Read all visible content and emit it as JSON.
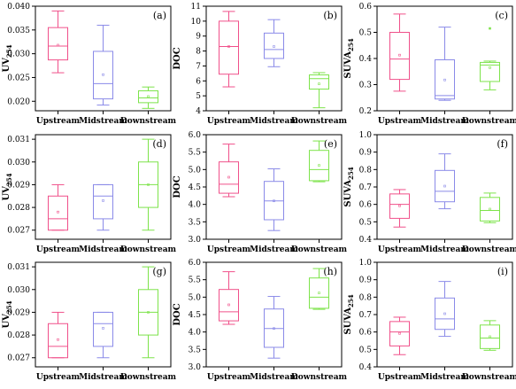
{
  "colors": {
    "upstream": "#f0508a",
    "midstream": "#8a8ae8",
    "downstream": "#7de34a"
  },
  "chart_data": [
    {
      "type": "box",
      "panel": "(a)",
      "ylabel": "UV",
      "ylabel_sub": "254",
      "ylim": [
        0.018,
        0.04
      ],
      "yticks": [
        0.02,
        0.025,
        0.03,
        0.035,
        0.04
      ],
      "ytick_labels": [
        "0.020",
        "0.025",
        "0.030",
        "0.035",
        "0.040"
      ],
      "categories": [
        "Upstream",
        "Midstream",
        "Downstream"
      ],
      "boxes": [
        {
          "min": 0.026,
          "q1": 0.0287,
          "median": 0.0316,
          "q3": 0.0355,
          "max": 0.039,
          "mean": 0.0318
        },
        {
          "min": 0.0192,
          "q1": 0.0205,
          "median": 0.0237,
          "q3": 0.0305,
          "max": 0.036,
          "mean": 0.0256
        },
        {
          "min": 0.0185,
          "q1": 0.0197,
          "median": 0.0207,
          "q3": 0.0222,
          "max": 0.023,
          "mean": 0.021
        }
      ]
    },
    {
      "type": "box",
      "panel": "(b)",
      "ylabel": "DOC",
      "ylabel_sub": "",
      "ylim": [
        4,
        11
      ],
      "yticks": [
        4,
        5,
        6,
        7,
        8,
        9,
        10,
        11
      ],
      "ytick_labels": [
        "4",
        "5",
        "6",
        "7",
        "8",
        "9",
        "10",
        "11"
      ],
      "categories": [
        "Upstream",
        "Midstream",
        "Downstream"
      ],
      "boxes": [
        {
          "min": 5.6,
          "q1": 6.45,
          "median": 8.3,
          "q3": 10.0,
          "max": 10.65,
          "mean": 8.3
        },
        {
          "min": 6.95,
          "q1": 7.5,
          "median": 8.1,
          "q3": 9.2,
          "max": 10.1,
          "mean": 8.3
        },
        {
          "min": 4.2,
          "q1": 5.45,
          "median": 6.15,
          "q3": 6.4,
          "max": 6.55,
          "mean": 5.8
        }
      ]
    },
    {
      "type": "box",
      "panel": "(c)",
      "ylabel": "SUVA",
      "ylabel_sub": "254",
      "ylim": [
        0.2,
        0.6
      ],
      "yticks": [
        0.2,
        0.3,
        0.4,
        0.5,
        0.6
      ],
      "ytick_labels": [
        "0.2",
        "0.3",
        "0.4",
        "0.5",
        "0.6"
      ],
      "categories": [
        "Upstream",
        "Midstream",
        "Downstream"
      ],
      "boxes": [
        {
          "min": 0.275,
          "q1": 0.32,
          "median": 0.398,
          "q3": 0.5,
          "max": 0.57,
          "mean": 0.413
        },
        {
          "min": 0.24,
          "q1": 0.245,
          "median": 0.258,
          "q3": 0.395,
          "max": 0.52,
          "mean": 0.318
        },
        {
          "min": 0.28,
          "q1": 0.312,
          "median": 0.375,
          "q3": 0.385,
          "max": 0.39,
          "mean": 0.365,
          "outliers": [
            0.515
          ]
        }
      ]
    },
    {
      "type": "box",
      "panel": "(d)",
      "ylabel": "UV",
      "ylabel_sub": "254",
      "ylim": [
        0.0266,
        0.0312
      ],
      "yticks": [
        0.027,
        0.028,
        0.029,
        0.03,
        0.031
      ],
      "ytick_labels": [
        "0.027",
        "0.028",
        "0.029",
        "0.030",
        "0.031"
      ],
      "categories": [
        "Upstream",
        "Midstream",
        "Downstream"
      ],
      "boxes": [
        {
          "min": 0.027,
          "q1": 0.027,
          "median": 0.0275,
          "q3": 0.0285,
          "max": 0.029,
          "mean": 0.0278
        },
        {
          "min": 0.027,
          "q1": 0.0275,
          "median": 0.0285,
          "q3": 0.029,
          "max": 0.029,
          "mean": 0.0283
        },
        {
          "min": 0.027,
          "q1": 0.028,
          "median": 0.029,
          "q3": 0.03,
          "max": 0.031,
          "mean": 0.029
        }
      ]
    },
    {
      "type": "box",
      "panel": "(e)",
      "ylabel": "DOC",
      "ylabel_sub": "",
      "ylim": [
        3.0,
        6.0
      ],
      "yticks": [
        3.0,
        3.5,
        4.0,
        4.5,
        5.0,
        5.5,
        6.0
      ],
      "ytick_labels": [
        "3.0",
        "3.5",
        "4.0",
        "4.5",
        "5.0",
        "5.5",
        "6.0"
      ],
      "categories": [
        "Upstream",
        "Midstream",
        "Downstream"
      ],
      "boxes": [
        {
          "min": 4.22,
          "q1": 4.32,
          "median": 4.58,
          "q3": 5.22,
          "max": 5.73,
          "mean": 4.78
        },
        {
          "min": 3.25,
          "q1": 3.56,
          "median": 4.1,
          "q3": 4.66,
          "max": 5.02,
          "mean": 4.1
        },
        {
          "min": 4.65,
          "q1": 4.68,
          "median": 5.0,
          "q3": 5.55,
          "max": 5.82,
          "mean": 5.12
        }
      ]
    },
    {
      "type": "box",
      "panel": "(f)",
      "ylabel": "SUVA",
      "ylabel_sub": "254",
      "ylim": [
        0.4,
        1.0
      ],
      "yticks": [
        0.4,
        0.5,
        0.6,
        0.7,
        0.8,
        0.9,
        1.0
      ],
      "ytick_labels": [
        "0.4",
        "0.5",
        "0.6",
        "0.7",
        "0.8",
        "0.9",
        "1.0"
      ],
      "categories": [
        "Upstream",
        "Midstream",
        "Downstream"
      ],
      "boxes": [
        {
          "min": 0.47,
          "q1": 0.52,
          "median": 0.6,
          "q3": 0.66,
          "max": 0.685,
          "mean": 0.592
        },
        {
          "min": 0.575,
          "q1": 0.615,
          "median": 0.675,
          "q3": 0.795,
          "max": 0.89,
          "mean": 0.705
        },
        {
          "min": 0.495,
          "q1": 0.505,
          "median": 0.565,
          "q3": 0.64,
          "max": 0.665,
          "mean": 0.573
        }
      ]
    },
    {
      "type": "box",
      "panel": "(g)",
      "ylabel": "UV",
      "ylabel_sub": "254",
      "ylim": [
        0.0266,
        0.0312
      ],
      "yticks": [
        0.027,
        0.028,
        0.029,
        0.03,
        0.031
      ],
      "ytick_labels": [
        "0.027",
        "0.028",
        "0.029",
        "0.030",
        "0.031"
      ],
      "categories": [
        "Upstream",
        "Midstream",
        "Downstream"
      ],
      "boxes": [
        {
          "min": 0.027,
          "q1": 0.027,
          "median": 0.0275,
          "q3": 0.0285,
          "max": 0.029,
          "mean": 0.0278
        },
        {
          "min": 0.027,
          "q1": 0.0275,
          "median": 0.0285,
          "q3": 0.029,
          "max": 0.029,
          "mean": 0.0283
        },
        {
          "min": 0.027,
          "q1": 0.028,
          "median": 0.029,
          "q3": 0.03,
          "max": 0.031,
          "mean": 0.029
        }
      ]
    },
    {
      "type": "box",
      "panel": "(h)",
      "ylabel": "DOC",
      "ylabel_sub": "",
      "ylim": [
        3.0,
        6.0
      ],
      "yticks": [
        3.0,
        3.5,
        4.0,
        4.5,
        5.0,
        5.5,
        6.0
      ],
      "ytick_labels": [
        "3.0",
        "3.5",
        "4.0",
        "4.5",
        "5.0",
        "5.5",
        "6.0"
      ],
      "categories": [
        "Upstream",
        "Midstream",
        "Downstream"
      ],
      "boxes": [
        {
          "min": 4.22,
          "q1": 4.32,
          "median": 4.58,
          "q3": 5.22,
          "max": 5.73,
          "mean": 4.78
        },
        {
          "min": 3.25,
          "q1": 3.56,
          "median": 4.1,
          "q3": 4.66,
          "max": 5.02,
          "mean": 4.1
        },
        {
          "min": 4.65,
          "q1": 4.68,
          "median": 5.0,
          "q3": 5.55,
          "max": 5.82,
          "mean": 5.12
        }
      ]
    },
    {
      "type": "box",
      "panel": "(i)",
      "ylabel": "SUVA",
      "ylabel_sub": "254",
      "ylim": [
        0.4,
        1.0
      ],
      "yticks": [
        0.4,
        0.5,
        0.6,
        0.7,
        0.8,
        0.9,
        1.0
      ],
      "ytick_labels": [
        "0.4",
        "0.5",
        "0.6",
        "0.7",
        "0.8",
        "0.9",
        "1.0"
      ],
      "categories": [
        "Upstream",
        "Midstream",
        "Downstream"
      ],
      "boxes": [
        {
          "min": 0.47,
          "q1": 0.52,
          "median": 0.6,
          "q3": 0.66,
          "max": 0.685,
          "mean": 0.592
        },
        {
          "min": 0.575,
          "q1": 0.615,
          "median": 0.675,
          "q3": 0.795,
          "max": 0.89,
          "mean": 0.705
        },
        {
          "min": 0.495,
          "q1": 0.505,
          "median": 0.565,
          "q3": 0.64,
          "max": 0.665,
          "mean": 0.573
        }
      ]
    }
  ]
}
